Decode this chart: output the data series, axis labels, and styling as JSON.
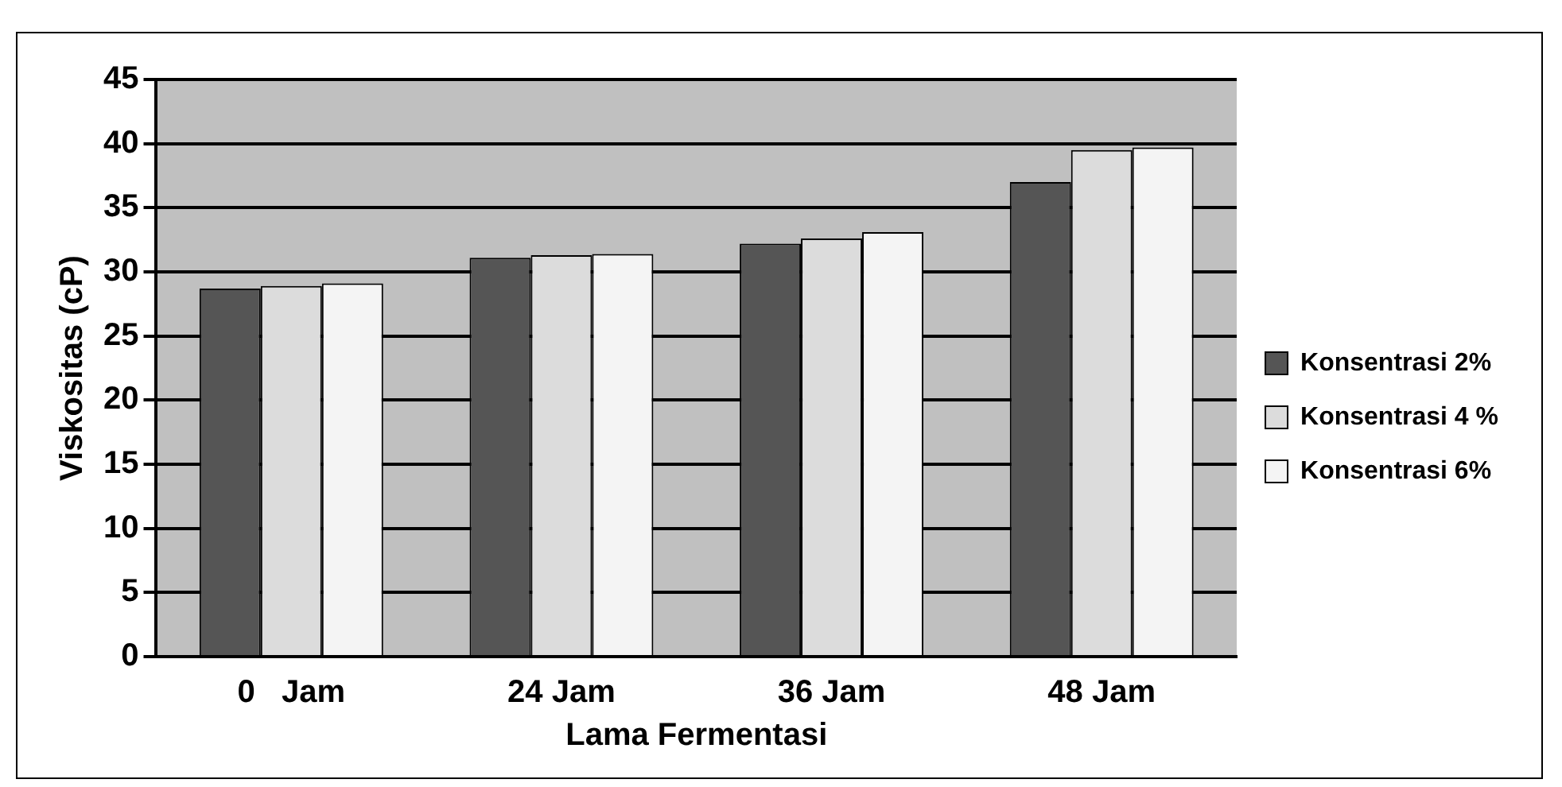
{
  "chart_data": {
    "type": "bar",
    "xlabel": "Lama Fermentasi",
    "ylabel": "Viskositas (cP)",
    "categories": [
      "0   Jam",
      "24 Jam",
      "36 Jam",
      "48 Jam"
    ],
    "series": [
      {
        "name": "Konsentrasi 2%",
        "color": "#555555",
        "values": [
          28.7,
          31.1,
          32.2,
          37.0
        ]
      },
      {
        "name": "Konsentrasi 4 %",
        "color": "#dcdcdc",
        "values": [
          28.9,
          31.3,
          32.6,
          39.5
        ]
      },
      {
        "name": "Konsentrasi 6%",
        "color": "#f4f4f4",
        "values": [
          29.1,
          31.4,
          33.1,
          39.7
        ]
      }
    ],
    "ylim": [
      0,
      45
    ],
    "yticks": [
      0,
      5,
      10,
      15,
      20,
      25,
      30,
      35,
      40,
      45
    ],
    "grid": "y",
    "legend": "right"
  }
}
